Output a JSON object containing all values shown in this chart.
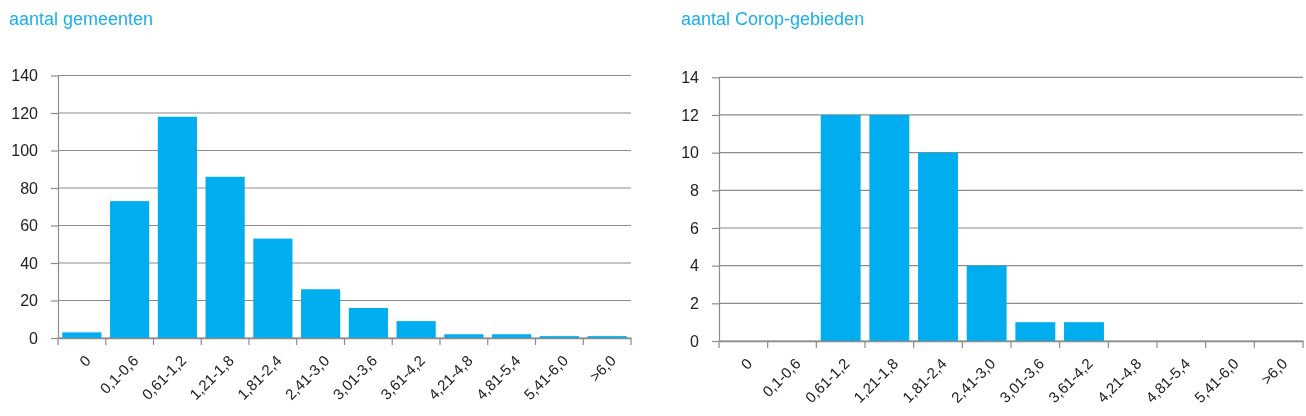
{
  "chart_data": [
    {
      "type": "bar",
      "title": "aantal gemeenten",
      "categories": [
        "0",
        "0,1-0,6",
        "0,61-1,2",
        "1,21-1,8",
        "1,81-2,4",
        "2,41-3,0",
        "3,01-3,6",
        "3,61-4,2",
        "4,21-4,8",
        "4,81-5,4",
        "5,41-6,0",
        ">6,0"
      ],
      "values": [
        3,
        73,
        118,
        86,
        53,
        26,
        16,
        9,
        2,
        2,
        1,
        1
      ],
      "color": "#00aeef",
      "ylim": [
        0,
        140
      ],
      "yticks": [
        0,
        20,
        40,
        60,
        80,
        100,
        120,
        140
      ],
      "grid": "y"
    },
    {
      "type": "bar",
      "title": "aantal Corop-gebieden",
      "categories": [
        "0",
        "0,1-0,6",
        "0,61-1,2",
        "1,21-1,8",
        "1,81-2,4",
        "2,41-3,0",
        "3,01-3,6",
        "3,61-4,2",
        "4,21-4,8",
        "4,81-5,4",
        "5,41-6,0",
        ">6,0"
      ],
      "values": [
        0,
        0,
        12,
        12,
        10,
        4,
        1,
        1,
        0,
        0,
        0,
        0
      ],
      "color": "#00aeef",
      "ylim": [
        0,
        14
      ],
      "yticks": [
        0,
        2,
        4,
        6,
        8,
        10,
        12,
        14
      ],
      "grid": "y"
    }
  ]
}
